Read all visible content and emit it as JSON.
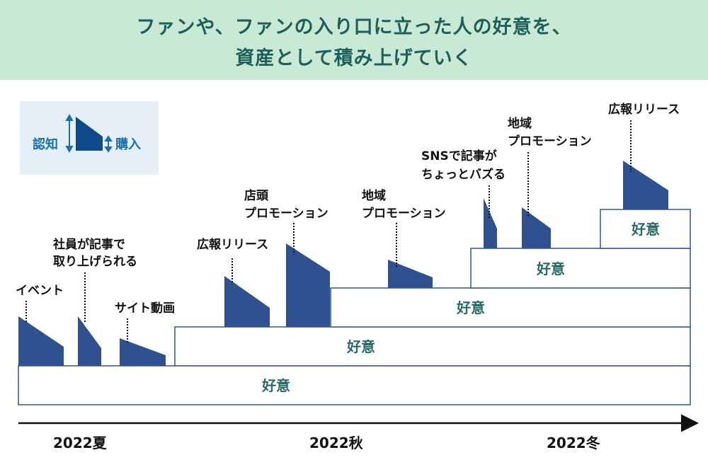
{
  "header": {
    "title_line1": "ファンや、ファンの入り口に立った人の好意を、",
    "title_line2": "資産として積み上げていく"
  },
  "legend": {
    "awareness": "認知",
    "purchase": "購入"
  },
  "events": [
    {
      "lines": [
        "イベント"
      ]
    },
    {
      "lines": [
        "社員が記事で",
        "取り上げられる"
      ]
    },
    {
      "lines": [
        "サイト動画"
      ]
    },
    {
      "lines": [
        "広報リリース"
      ]
    },
    {
      "lines": [
        "店頭",
        "プロモーション"
      ]
    },
    {
      "lines": [
        "地域",
        "プロモーション"
      ]
    },
    {
      "lines": [
        "SNSで記事が",
        "ちょっとバズる"
      ]
    },
    {
      "lines": [
        "地域",
        "プロモーション"
      ]
    },
    {
      "lines": [
        "広報リリース"
      ]
    }
  ],
  "goodwill_layers": [
    "好意",
    "好意",
    "好意",
    "好意",
    "好意"
  ],
  "timeline": [
    "2022夏",
    "2022秋",
    "2022冬"
  ],
  "colors": {
    "header_bg": "#c8ead5",
    "title": "#1f5f5b",
    "shape": "#2f5190",
    "box_stroke": "#2f5597",
    "legend_bg": "#e4eff8",
    "legend_text": "#1a6fb0"
  }
}
